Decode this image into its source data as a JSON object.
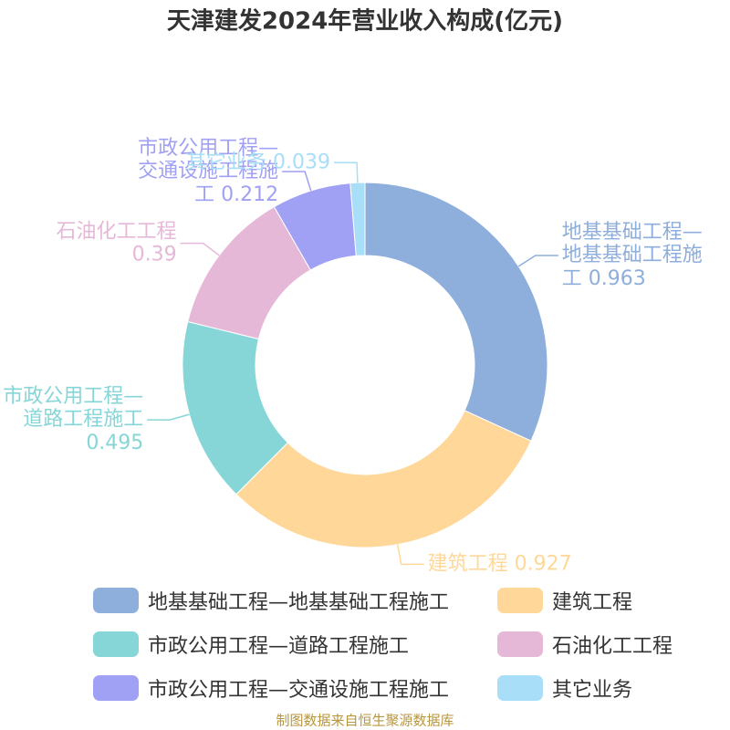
{
  "chart_data": {
    "type": "donut",
    "title": "天津建发2024年营业收入构成(亿元)",
    "categories": [
      "地基基础工程—地基基础工程施工",
      "建筑工程",
      "市政公用工程—道路工程施工",
      "石油化工工程",
      "市政公用工程—交通设施工程施工",
      "其它业务"
    ],
    "values": [
      0.963,
      0.927,
      0.495,
      0.39,
      0.212,
      0.039
    ],
    "colors": [
      "#8eaedb",
      "#ffd899",
      "#86d6d8",
      "#e6b8d8",
      "#a0a0f4",
      "#a8def8"
    ],
    "source": "制图数据来自恒生聚源数据库"
  }
}
